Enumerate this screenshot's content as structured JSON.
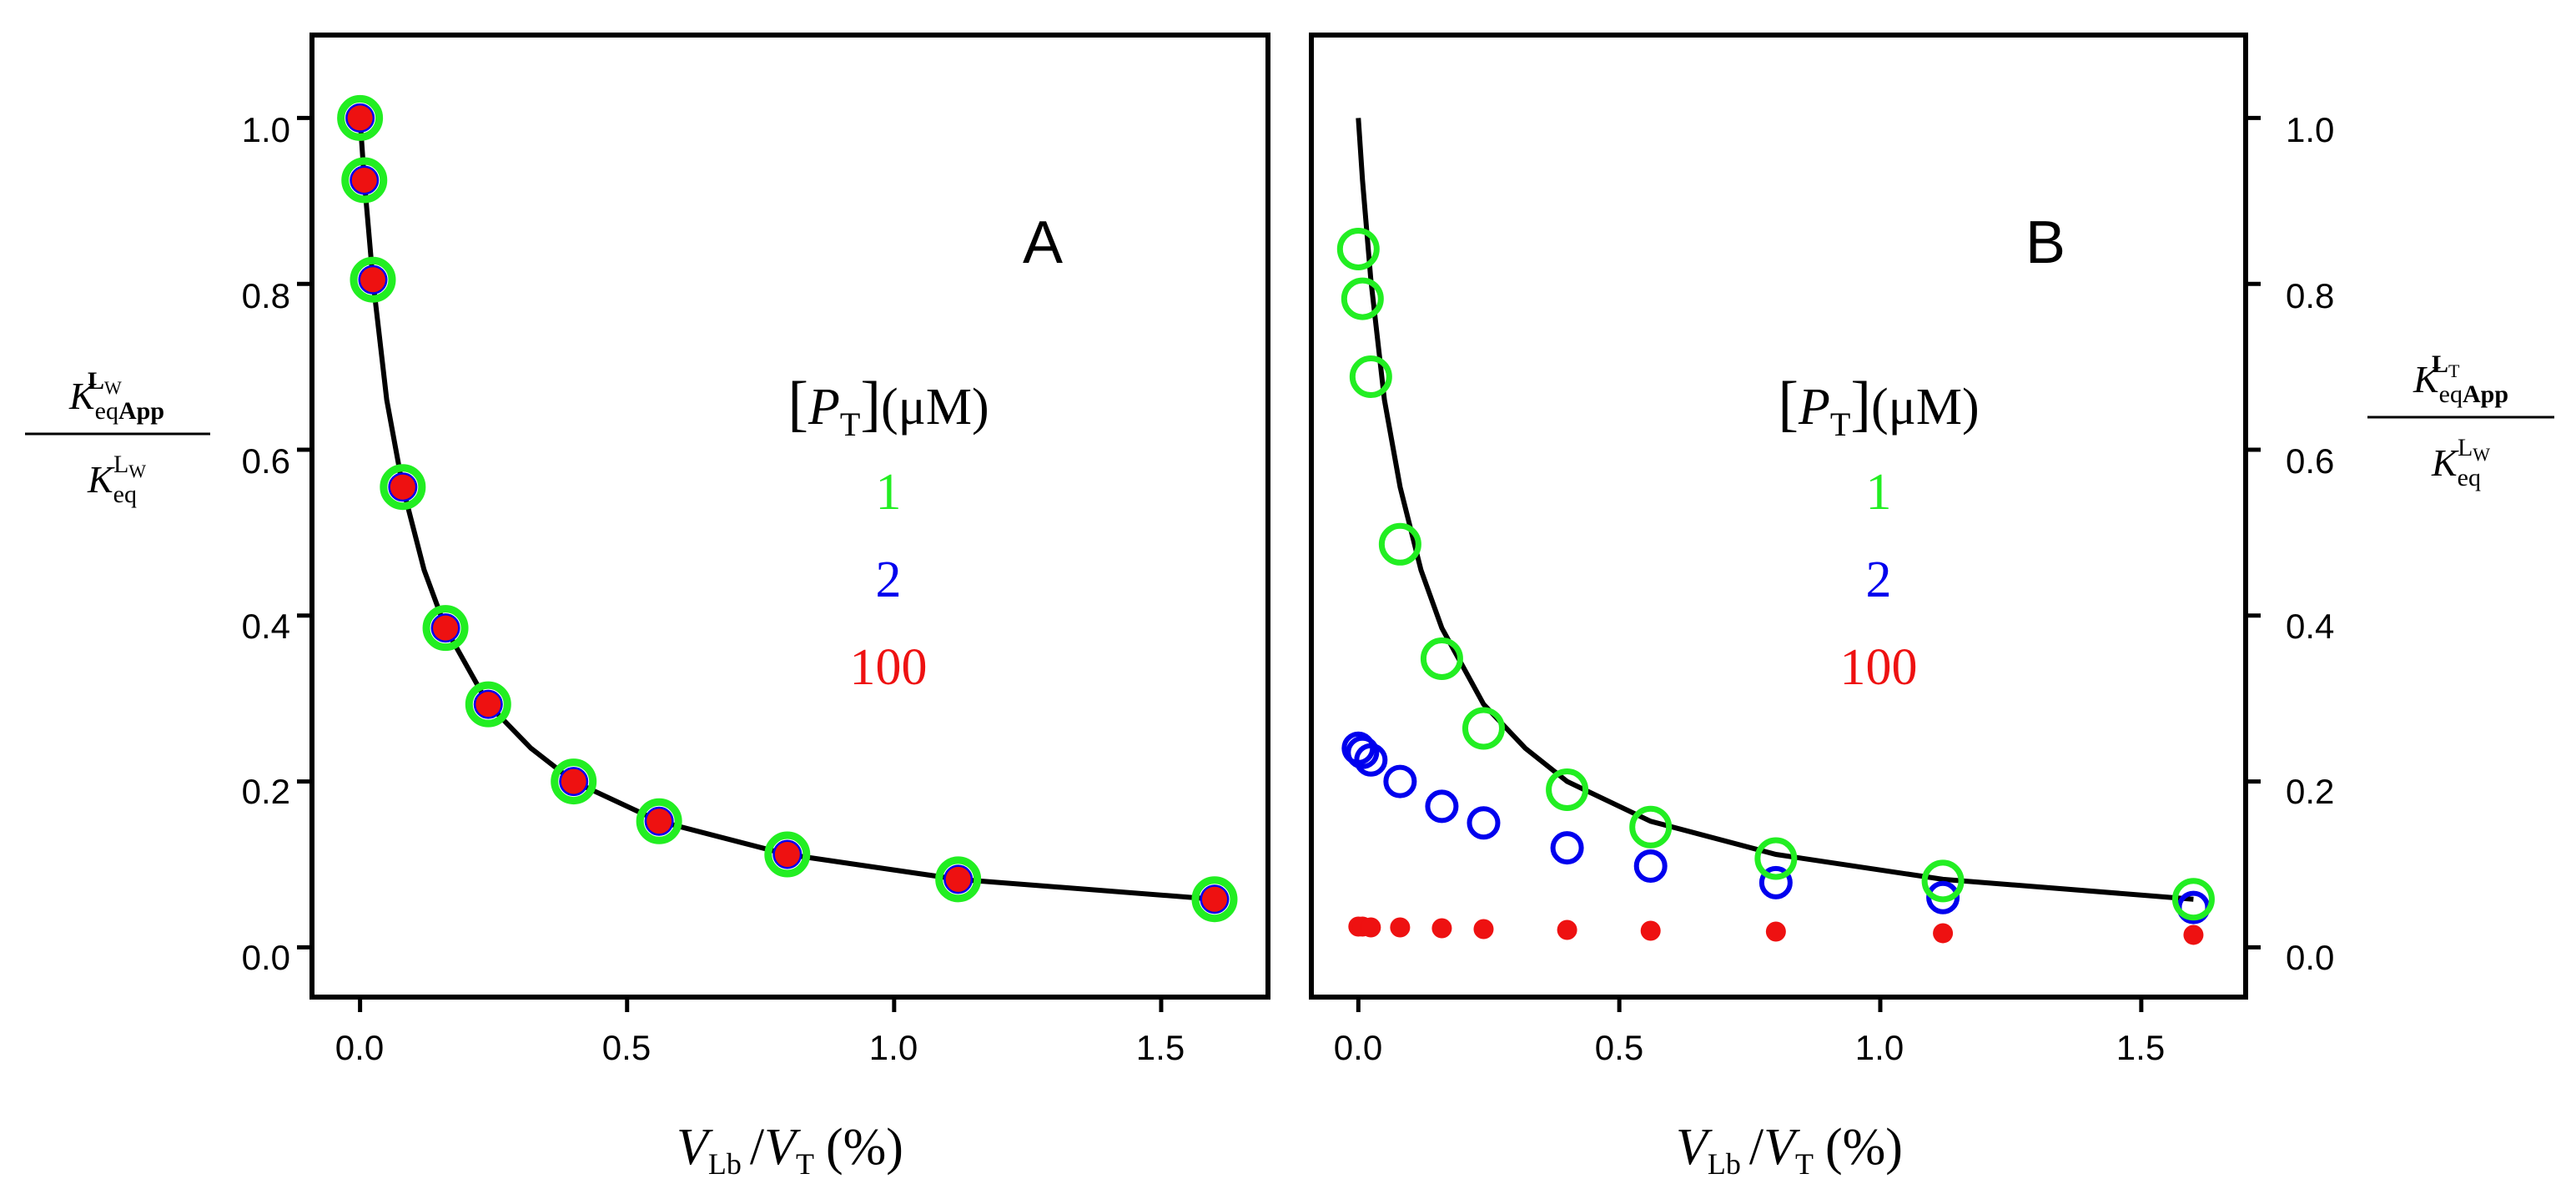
{
  "chart_data": [
    {
      "type": "scatter",
      "panel": "A",
      "xlabel": "V_Lb / V_T (%)",
      "ylabel": "K_eqApp^(L_W) / K_eq^(L_W)",
      "xlim": [
        -0.09,
        1.7
      ],
      "ylim": [
        -0.06,
        1.1
      ],
      "xticks": [
        0.0,
        0.5,
        1.0,
        1.5
      ],
      "yticks": [
        0.0,
        0.2,
        0.4,
        0.6,
        0.8,
        1.0
      ],
      "xtick_labels": [
        "0.0",
        "0.5",
        "1.0",
        "1.5"
      ],
      "ytick_labels": [
        "0.0",
        "0.2",
        "0.4",
        "0.6",
        "0.8",
        "1.0"
      ],
      "x": [
        0.0,
        0.008,
        0.024,
        0.08,
        0.16,
        0.24,
        0.4,
        0.56,
        0.8,
        1.12,
        1.6
      ],
      "series": [
        {
          "name": "1",
          "color": "#22ee22",
          "style": "open-circle",
          "values": [
            1.0,
            0.925,
            0.805,
            0.555,
            0.385,
            0.293,
            0.2,
            0.152,
            0.112,
            0.082,
            0.058
          ]
        },
        {
          "name": "2",
          "color": "#0000ee",
          "style": "open-circle",
          "values": [
            1.0,
            0.925,
            0.805,
            0.555,
            0.385,
            0.293,
            0.2,
            0.152,
            0.112,
            0.082,
            0.058
          ]
        },
        {
          "name": "100",
          "color": "#ee1111",
          "style": "filled-circle",
          "values": [
            1.0,
            0.925,
            0.805,
            0.555,
            0.385,
            0.293,
            0.2,
            0.152,
            0.112,
            0.082,
            0.058
          ]
        }
      ],
      "fit_curve": {
        "x": [
          0.0,
          0.008,
          0.024,
          0.05,
          0.08,
          0.12,
          0.16,
          0.24,
          0.32,
          0.4,
          0.56,
          0.8,
          1.12,
          1.6
        ],
        "y": [
          1.0,
          0.925,
          0.805,
          0.66,
          0.555,
          0.455,
          0.385,
          0.293,
          0.24,
          0.2,
          0.152,
          0.112,
          0.082,
          0.058
        ]
      },
      "annotation": "A",
      "legend": {
        "title_bracket": "[",
        "title_var": "P",
        "title_sub": "T",
        "title_close": "]",
        "title_unit": "(μM)",
        "entries": [
          "1",
          "2",
          "100"
        ]
      }
    },
    {
      "type": "scatter",
      "panel": "B",
      "xlabel": "V_Lb / V_T (%)",
      "ylabel": "K_eqApp^(L_T) / K_eq^(L_W)",
      "xlim": [
        -0.09,
        1.7
      ],
      "ylim": [
        -0.06,
        1.1
      ],
      "xticks": [
        0.0,
        0.5,
        1.0,
        1.5
      ],
      "yticks": [
        0.0,
        0.2,
        0.4,
        0.6,
        0.8,
        1.0
      ],
      "xtick_labels": [
        "0.0",
        "0.5",
        "1.0",
        "1.5"
      ],
      "ytick_labels": [
        "0.0",
        "0.2",
        "0.4",
        "0.6",
        "0.8",
        "1.0"
      ],
      "x": [
        0.0,
        0.008,
        0.024,
        0.08,
        0.16,
        0.24,
        0.4,
        0.56,
        0.8,
        1.12,
        1.6
      ],
      "series": [
        {
          "name": "1",
          "color": "#22ee22",
          "style": "open-circle",
          "values": [
            0.842,
            0.782,
            0.688,
            0.486,
            0.348,
            0.264,
            0.19,
            0.145,
            0.107,
            0.08,
            0.058
          ]
        },
        {
          "name": "2",
          "color": "#0000ee",
          "style": "open-circle",
          "values": [
            0.24,
            0.235,
            0.226,
            0.2,
            0.17,
            0.15,
            0.12,
            0.098,
            0.078,
            0.06,
            0.048
          ]
        },
        {
          "name": "100",
          "color": "#ee1111",
          "style": "filled-circle",
          "values": [
            0.025,
            0.025,
            0.024,
            0.024,
            0.023,
            0.022,
            0.021,
            0.02,
            0.019,
            0.017,
            0.015
          ]
        }
      ],
      "fit_curve": {
        "x": [
          0.0,
          0.008,
          0.024,
          0.05,
          0.08,
          0.12,
          0.16,
          0.24,
          0.32,
          0.4,
          0.56,
          0.8,
          1.12,
          1.6
        ],
        "y": [
          1.0,
          0.925,
          0.805,
          0.66,
          0.555,
          0.455,
          0.385,
          0.293,
          0.24,
          0.2,
          0.152,
          0.112,
          0.082,
          0.058
        ]
      },
      "annotation": "B",
      "legend": {
        "title_bracket": "[",
        "title_var": "P",
        "title_sub": "T",
        "title_close": "]",
        "title_unit": "(μM)",
        "entries": [
          "1",
          "2",
          "100"
        ]
      }
    }
  ],
  "labels": {
    "x_var": "V",
    "x_sub_num": "Lb",
    "x_slash": "/",
    "x_var2": "V",
    "x_sub_den": "T",
    "x_unit": "(%)",
    "yA_num_K": "K",
    "yA_num_sub": "eq",
    "yA_num_sub_bold": "App",
    "yA_num_sup": "L",
    "yA_num_sup_sub": "W",
    "yA_den_K": "K",
    "yA_den_sub": "eq",
    "yA_den_sup": "L",
    "yA_den_sup_sub": "W",
    "yB_num_K": "K",
    "yB_num_sub": "eq",
    "yB_num_sub_bold": "App",
    "yB_num_sup": "L",
    "yB_num_sup_sub": "T",
    "yB_den_K": "K",
    "yB_den_sub": "eq",
    "yB_den_sup": "L",
    "yB_den_sup_sub": "W"
  }
}
